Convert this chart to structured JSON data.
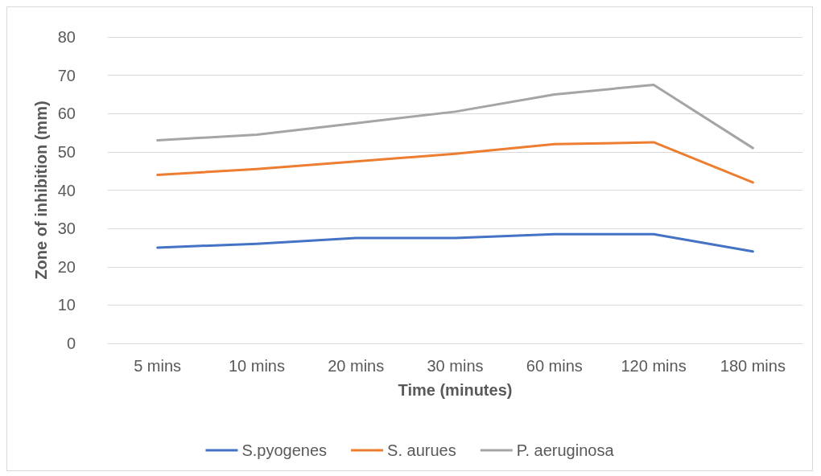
{
  "chart_data": {
    "type": "line",
    "xlabel": "Time (minutes)",
    "ylabel": "Zone of inhibition (mm)",
    "categories": [
      "5 mins",
      "10 mins",
      "20 mins",
      "30 mins",
      "60 mins",
      "120 mins",
      "180 mins"
    ],
    "series": [
      {
        "name": "S.pyogenes",
        "color": "#4472c4",
        "values": [
          25,
          26,
          27.5,
          27.5,
          28.5,
          28.5,
          24
        ]
      },
      {
        "name": "S. aurues",
        "color": "#ed7d31",
        "values": [
          44,
          45.5,
          47.5,
          49.5,
          52,
          52.5,
          42
        ]
      },
      {
        "name": "P. aeruginosa",
        "color": "#a5a5a5",
        "values": [
          53,
          54.5,
          57.5,
          60.5,
          65,
          67.5,
          51
        ]
      }
    ],
    "ylim": [
      0,
      80
    ],
    "yticks": [
      0,
      10,
      20,
      30,
      40,
      50,
      60,
      70,
      80
    ],
    "grid": "y",
    "legend": "bottom",
    "marker": "none",
    "line_style": "solid"
  }
}
